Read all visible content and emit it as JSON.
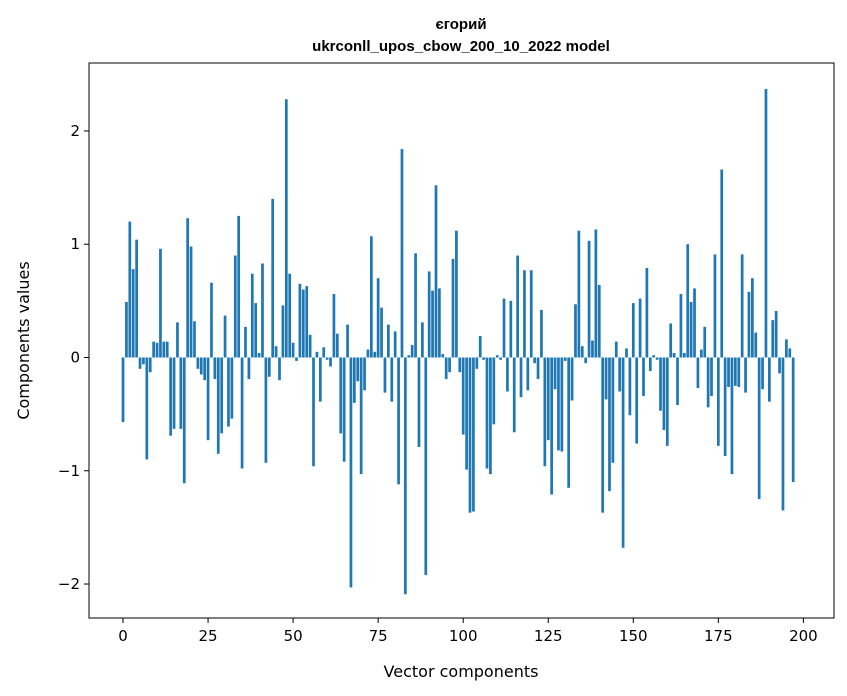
{
  "chart_data": {
    "type": "bar",
    "title": "єгорий",
    "subtitle": "ukrconll_upos_cbow_200_10_2022 model",
    "xlabel": "Vector components",
    "ylabel": "Components values",
    "xlim": [
      -10,
      209
    ],
    "ylim": [
      -2.3,
      2.6
    ],
    "xticks": [
      0,
      25,
      50,
      75,
      100,
      125,
      150,
      175,
      200
    ],
    "yticks": [
      -2,
      -1,
      0,
      1,
      2
    ],
    "xtick_labels": [
      "0",
      "25",
      "50",
      "75",
      "100",
      "125",
      "150",
      "175",
      "200"
    ],
    "ytick_labels": [
      "−2",
      "−1",
      "0",
      "1",
      "2"
    ],
    "grid": false,
    "bar_color": "#1f77b4",
    "values": [
      -0.57,
      0.49,
      1.2,
      0.78,
      1.04,
      -0.1,
      -0.06,
      -0.9,
      -0.13,
      0.14,
      0.13,
      0.96,
      0.14,
      0.14,
      -0.69,
      -0.63,
      0.31,
      -0.63,
      -1.11,
      1.23,
      0.98,
      0.32,
      -0.1,
      -0.15,
      -0.2,
      -0.73,
      0.66,
      -0.19,
      -0.85,
      -0.67,
      0.37,
      -0.61,
      -0.54,
      0.9,
      1.25,
      -0.98,
      0.27,
      -0.19,
      0.74,
      0.48,
      0.04,
      0.83,
      -0.93,
      -0.17,
      1.4,
      0.1,
      -0.2,
      0.46,
      2.28,
      0.74,
      0.13,
      -0.03,
      0.65,
      0.6,
      0.63,
      0.2,
      -0.96,
      0.05,
      -0.39,
      0.09,
      -0.02,
      -0.08,
      0.56,
      0.21,
      -0.67,
      -0.92,
      0.29,
      -2.03,
      -0.4,
      -0.21,
      -1.03,
      -0.29,
      0.07,
      1.07,
      0.05,
      0.7,
      0.44,
      -0.31,
      0.29,
      -0.39,
      0.23,
      -1.12,
      1.84,
      -2.09,
      0.02,
      0.11,
      0.92,
      -0.79,
      0.31,
      -1.92,
      0.76,
      0.59,
      1.52,
      0.61,
      0.03,
      -0.19,
      -0.13,
      0.87,
      1.12,
      -0.13,
      -0.68,
      -0.99,
      -1.37,
      -1.36,
      -0.1,
      0.19,
      -0.02,
      -0.98,
      -1.03,
      -0.59,
      0.02,
      -0.02,
      0.52,
      -0.3,
      0.5,
      -0.66,
      0.9,
      -0.35,
      0.77,
      -0.29,
      0.77,
      -0.05,
      -0.19,
      0.42,
      -0.96,
      -0.73,
      -1.21,
      -0.28,
      -0.82,
      -0.83,
      -0.03,
      -1.15,
      -0.38,
      0.47,
      1.12,
      0.1,
      -0.05,
      1.03,
      0.15,
      1.13,
      0.64,
      -1.37,
      -0.37,
      -1.18,
      -0.93,
      0.14,
      -0.3,
      -1.68,
      0.08,
      -0.51,
      0.48,
      -0.76,
      0.52,
      -0.34,
      0.79,
      -0.12,
      0.02,
      -0.02,
      -0.47,
      -0.64,
      -0.78,
      0.3,
      0.04,
      -0.42,
      0.56,
      0.04,
      1.0,
      0.49,
      0.61,
      -0.27,
      0.07,
      0.27,
      -0.44,
      -0.34,
      0.91,
      -0.78,
      1.66,
      -0.87,
      -0.26,
      -1.03,
      -0.25,
      -0.26,
      0.91,
      -0.31,
      0.58,
      0.7,
      0.22,
      -1.25,
      -0.28,
      2.37,
      -0.39,
      0.33,
      0.41,
      -0.14,
      -1.35,
      0.16,
      0.08,
      -1.1
    ]
  }
}
